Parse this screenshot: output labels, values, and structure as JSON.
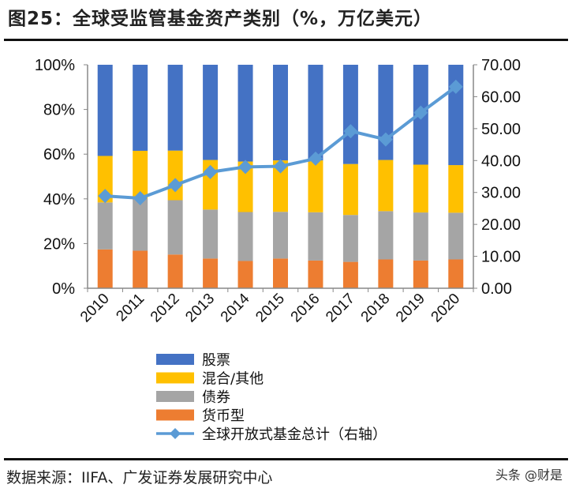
{
  "title": "图25：全球受监管基金资产类别（%，万亿美元）",
  "source": "数据来源：IIFA、广发证券发展研究中心",
  "watermark": "头条 @财是",
  "chart_data": {
    "type": "bar",
    "stacked": true,
    "categories": [
      "2010",
      "2011",
      "2012",
      "2013",
      "2014",
      "2015",
      "2016",
      "2017",
      "2018",
      "2019",
      "2020"
    ],
    "left_axis": {
      "ylim": [
        0,
        100
      ],
      "ticks": [
        "0%",
        "20%",
        "40%",
        "60%",
        "80%",
        "100%"
      ]
    },
    "right_axis": {
      "ylim": [
        0,
        70
      ],
      "ticks": [
        "0.00",
        "10.00",
        "20.00",
        "30.00",
        "40.00",
        "50.00",
        "60.00",
        "70.00"
      ]
    },
    "series": [
      {
        "name": "货币型",
        "color": "#ED7D31",
        "axis": "left",
        "values": [
          17.4,
          16.8,
          15.1,
          13.3,
          12.2,
          13.3,
          12.4,
          11.8,
          12.9,
          12.4,
          12.9
        ]
      },
      {
        "name": "债券",
        "color": "#A5A5A5",
        "axis": "left",
        "values": [
          21.0,
          23.3,
          24.3,
          21.9,
          21.9,
          20.9,
          21.6,
          21.0,
          21.6,
          21.5,
          20.9
        ]
      },
      {
        "name": "混合/其他",
        "color": "#FFC000",
        "axis": "left",
        "values": [
          20.8,
          21.4,
          22.2,
          22.2,
          22.6,
          23.0,
          23.2,
          22.8,
          22.9,
          21.4,
          21.3
        ]
      },
      {
        "name": "股票",
        "color": "#4472C4",
        "axis": "left",
        "values": [
          40.8,
          38.5,
          38.4,
          42.6,
          43.3,
          42.8,
          42.8,
          44.4,
          42.6,
          44.7,
          44.9
        ]
      },
      {
        "name": "全球开放式基金总计（右轴）",
        "color": "#5B9BD5",
        "axis": "right",
        "type": "line",
        "marker": "diamond",
        "values": [
          28.9,
          28.2,
          32.3,
          36.4,
          38.0,
          38.2,
          40.6,
          49.2,
          46.6,
          55.0,
          63.1
        ]
      }
    ],
    "legend_order": [
      "股票",
      "混合/其他",
      "债券",
      "货币型",
      "全球开放式基金总计（右轴）"
    ],
    "legend_position": "bottom",
    "grid": false
  }
}
